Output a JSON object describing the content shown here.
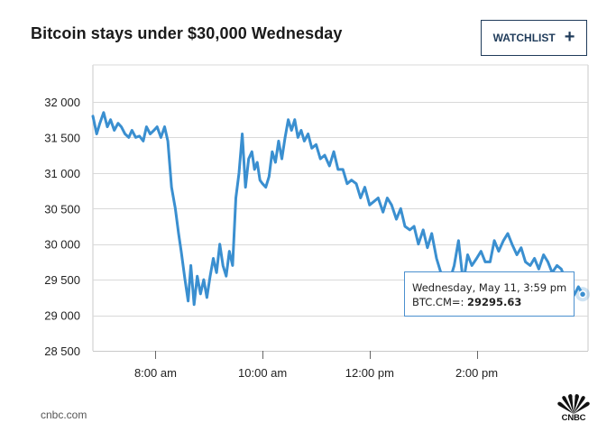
{
  "header": {
    "title": "Bitcoin stays under $30,000 Wednesday",
    "watchlist_label": "WATCHLIST",
    "watchlist_icon": "plus-icon"
  },
  "tooltip": {
    "date_text": "Wednesday, May 11, 3:59 pm",
    "symbol_label": "BTC.CM=:",
    "value_text": "29295.63"
  },
  "footer": {
    "source": "cnbc.com",
    "logo_text": "CNBC"
  },
  "colors": {
    "line": "#3a8fd0",
    "grid": "#d9d9d9",
    "axis": "#c9c9c9",
    "watchlist": "#1f3b5a"
  },
  "chart_data": {
    "type": "line",
    "title": "Bitcoin stays under $30,000 Wednesday",
    "xlabel": "",
    "ylabel": "",
    "series_name": "BTC.CM=",
    "ylim": [
      28500,
      32200
    ],
    "xlim": [
      6.83,
      16.08
    ],
    "y_ticks": [
      28500,
      29000,
      29500,
      30000,
      30500,
      31000,
      31500,
      32000
    ],
    "y_tick_labels": [
      "28 500",
      "29 000",
      "29 500",
      "30 000",
      "30 500",
      "31 000",
      "31 500",
      "32 000"
    ],
    "x_ticks": [
      8,
      10,
      12,
      14
    ],
    "x_tick_labels": [
      "8:00 am",
      "10:00 am",
      "12:00 pm",
      "2:00 pm"
    ],
    "highlight_point": {
      "x": 15.98,
      "y": 29295.63
    },
    "x": [
      6.83,
      6.9,
      6.96,
      7.03,
      7.1,
      7.16,
      7.23,
      7.3,
      7.36,
      7.43,
      7.5,
      7.56,
      7.63,
      7.7,
      7.77,
      7.83,
      7.9,
      7.97,
      8.03,
      8.1,
      8.17,
      8.23,
      8.3,
      8.37,
      8.43,
      8.48,
      8.55,
      8.61,
      8.66,
      8.72,
      8.78,
      8.84,
      8.9,
      8.96,
      9.02,
      9.08,
      9.14,
      9.2,
      9.26,
      9.32,
      9.38,
      9.44,
      9.5,
      9.56,
      9.62,
      9.68,
      9.74,
      9.8,
      9.85,
      9.9,
      9.95,
      10.0,
      10.06,
      10.12,
      10.18,
      10.24,
      10.3,
      10.36,
      10.42,
      10.48,
      10.54,
      10.6,
      10.66,
      10.72,
      10.78,
      10.85,
      10.92,
      11.0,
      11.08,
      11.16,
      11.25,
      11.33,
      11.41,
      11.5,
      11.58,
      11.66,
      11.75,
      11.83,
      11.91,
      12.0,
      12.08,
      12.16,
      12.25,
      12.33,
      12.41,
      12.5,
      12.58,
      12.66,
      12.75,
      12.83,
      12.91,
      13.0,
      13.08,
      13.16,
      13.25,
      13.33,
      13.41,
      13.5,
      13.58,
      13.66,
      13.75,
      13.83,
      13.91,
      14.0,
      14.08,
      14.16,
      14.25,
      14.33,
      14.41,
      14.5,
      14.58,
      14.66,
      14.75,
      14.83,
      14.91,
      15.0,
      15.08,
      15.16,
      15.25,
      15.33,
      15.41,
      15.5,
      15.58,
      15.66,
      15.75,
      15.83,
      15.9,
      15.98
    ],
    "values": [
      31800,
      31550,
      31700,
      31850,
      31650,
      31750,
      31600,
      31700,
      31650,
      31550,
      31500,
      31600,
      31500,
      31520,
      31450,
      31650,
      31550,
      31600,
      31650,
      31500,
      31650,
      31450,
      30800,
      30500,
      30150,
      29900,
      29500,
      29200,
      29700,
      29150,
      29550,
      29300,
      29500,
      29250,
      29550,
      29800,
      29600,
      30000,
      29700,
      29550,
      29900,
      29700,
      30650,
      31000,
      31550,
      30800,
      31200,
      31300,
      31050,
      31150,
      30900,
      30850,
      30800,
      30950,
      31300,
      31150,
      31450,
      31200,
      31500,
      31750,
      31600,
      31750,
      31500,
      31600,
      31450,
      31550,
      31350,
      31400,
      31200,
      31250,
      31100,
      31300,
      31050,
      31050,
      30850,
      30900,
      30850,
      30650,
      30800,
      30550,
      30600,
      30650,
      30450,
      30650,
      30550,
      30350,
      30500,
      30250,
      30200,
      30250,
      30000,
      30200,
      29950,
      30150,
      29800,
      29600,
      29550,
      29500,
      29700,
      30050,
      29450,
      29850,
      29700,
      29800,
      29900,
      29750,
      29750,
      30050,
      29900,
      30050,
      30150,
      30000,
      29850,
      29950,
      29750,
      29700,
      29800,
      29650,
      29850,
      29750,
      29600,
      29700,
      29650,
      29500,
      29200,
      29300,
      29400,
      29295.63
    ]
  }
}
